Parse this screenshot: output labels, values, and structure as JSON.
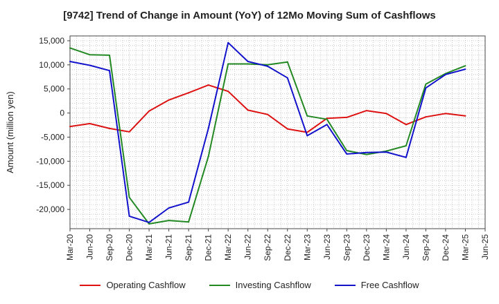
{
  "chart_data": {
    "type": "line",
    "title": "[9742]  Trend of Change in Amount (YoY) of 12Mo Moving Sum of Cashflows",
    "xlabel": "",
    "ylabel": "Amount (million yen)",
    "ylim": [
      -24000,
      16000
    ],
    "yticks": [
      15000,
      10000,
      5000,
      0,
      -5000,
      -10000,
      -15000,
      -20000
    ],
    "ytick_labels": [
      "15,000",
      "10,000",
      "5,000",
      "0",
      "-5,000",
      "-10,000",
      "-15,000",
      "-20,000"
    ],
    "categories": [
      "Mar-20",
      "Jun-20",
      "Sep-20",
      "Dec-20",
      "Mar-21",
      "Jun-21",
      "Sep-21",
      "Dec-21",
      "Mar-22",
      "Jun-22",
      "Sep-22",
      "Dec-22",
      "Mar-23",
      "Jun-23",
      "Sep-23",
      "Dec-23",
      "Mar-24",
      "Jun-24",
      "Sep-24",
      "Dec-24",
      "Mar-25",
      "Jun-25"
    ],
    "grid": true,
    "legend_position": "bottom",
    "series": [
      {
        "name": "Operating Cashflow",
        "color": "#dd1111",
        "values": [
          -2800,
          -2200,
          -3200,
          -3900,
          400,
          2700,
          4200,
          5800,
          4500,
          600,
          -300,
          -3300,
          -4000,
          -1100,
          -900,
          500,
          -100,
          -2400,
          -800,
          -100,
          -600,
          null
        ]
      },
      {
        "name": "Investing Cashflow",
        "color": "#228822",
        "values": [
          13500,
          12100,
          12000,
          -17500,
          -23000,
          -22300,
          -22600,
          -9000,
          10200,
          10200,
          10000,
          10600,
          -600,
          -1300,
          -7800,
          -8600,
          -7900,
          -6800,
          6000,
          8200,
          9800,
          null
        ]
      },
      {
        "name": "Free Cashflow",
        "color": "#1111cc",
        "values": [
          10700,
          9900,
          8800,
          -21400,
          -22700,
          -19700,
          -18500,
          -3200,
          14600,
          10700,
          9700,
          7300,
          -4700,
          -2400,
          -8500,
          -8200,
          -8100,
          -9200,
          5200,
          8000,
          9100,
          null
        ]
      }
    ]
  }
}
